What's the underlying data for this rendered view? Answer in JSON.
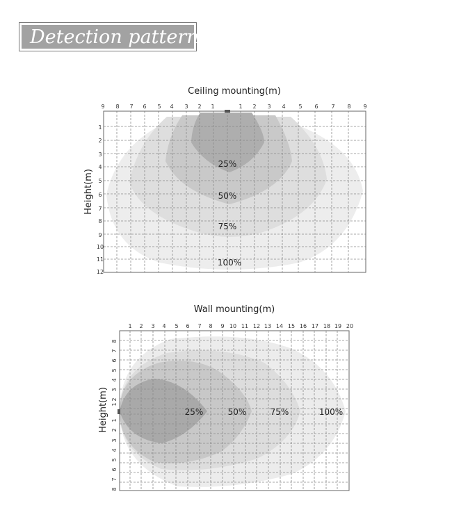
{
  "header": {
    "title": "Detection pattern"
  },
  "charts": {
    "ceiling": {
      "title": "Ceiling mounting(m)",
      "ylabel": "Height(m)",
      "x_ticks": [
        "9",
        "8",
        "7",
        "6",
        "5",
        "4",
        "3",
        "2",
        "1",
        "",
        "1",
        "2",
        "3",
        "4",
        "5",
        "6",
        "7",
        "8",
        "9"
      ],
      "y_ticks": [
        "1",
        "2",
        "3",
        "4",
        "5",
        "6",
        "7",
        "8",
        "9",
        "10",
        "11",
        "12"
      ],
      "zones": [
        "25%",
        "50%",
        "75%",
        "100%"
      ]
    },
    "wall": {
      "title": "Wall mounting(m)",
      "ylabel": "Height(m)",
      "x_ticks": [
        "1",
        "2",
        "3",
        "4",
        "5",
        "6",
        "7",
        "8",
        "9",
        "10",
        "11",
        "12",
        "13",
        "14",
        "15",
        "16",
        "17",
        "18",
        "19",
        "20"
      ],
      "y_ticks": [
        "8",
        "7",
        "6",
        "5",
        "4",
        "3",
        "2",
        "1",
        "",
        "1",
        "2",
        "3",
        "4",
        "5",
        "6",
        "7",
        "8"
      ],
      "zones": [
        "25%",
        "50%",
        "75%",
        "100%"
      ]
    }
  },
  "chart_data": [
    {
      "type": "area",
      "title": "Ceiling mounting(m)",
      "ylabel": "Height(m)",
      "xlim": [
        -9,
        9
      ],
      "ylim": [
        0,
        12
      ],
      "grid": true,
      "series": [
        {
          "name": "25%",
          "max_reach": 4.0
        },
        {
          "name": "50%",
          "max_reach": 6.3
        },
        {
          "name": "75%",
          "max_reach": 8.6
        },
        {
          "name": "100%",
          "max_reach": 11.2
        }
      ]
    },
    {
      "type": "area",
      "title": "Wall mounting(m)",
      "ylabel": "Height(m)",
      "xlim": [
        0,
        20
      ],
      "ylim": [
        -8,
        8
      ],
      "grid": true,
      "series": [
        {
          "name": "25%",
          "max_reach": 7.6
        },
        {
          "name": "50%",
          "max_reach": 11.8
        },
        {
          "name": "75%",
          "max_reach": 15.3
        },
        {
          "name": "100%",
          "max_reach": 19.4
        }
      ]
    }
  ]
}
